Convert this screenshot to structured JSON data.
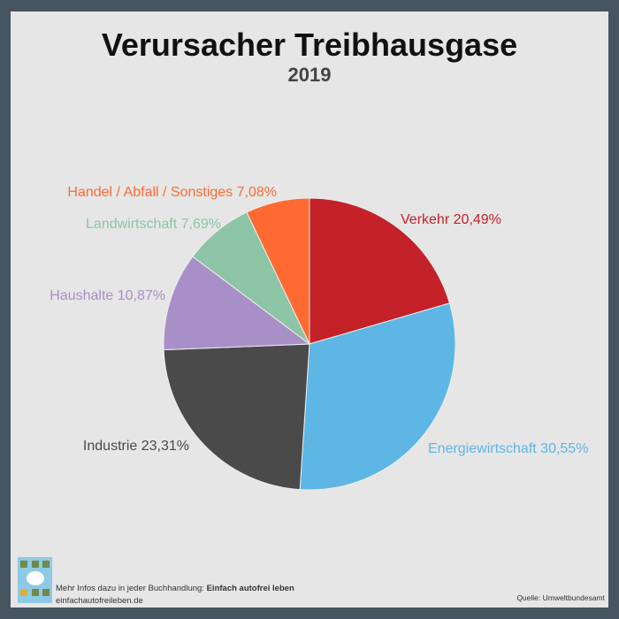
{
  "chart_data": {
    "type": "pie",
    "title": "Verursacher Treibhausgase",
    "subtitle": "2019",
    "slices": [
      {
        "label": "Verkehr 20,49%",
        "value": 20.49,
        "color": "#c42128"
      },
      {
        "label": "Energiewirtschaft 30,55%",
        "value": 30.55,
        "color": "#5db6e4"
      },
      {
        "label": "Industrie 23,31%",
        "value": 23.31,
        "color": "#4a4a4a"
      },
      {
        "label": "Haushalte 10,87%",
        "value": 10.87,
        "color": "#a98fc7"
      },
      {
        "label": "Landwirtschaft 7,69%",
        "value": 7.69,
        "color": "#8dc4a6"
      },
      {
        "label": "Handel / Abfall / Sonstiges 7,08%",
        "value": 7.08,
        "color": "#ff6a33"
      }
    ]
  },
  "footer": {
    "info_prefix": "Mehr Infos dazu in jeder Buchhandlung: ",
    "book_title": "Einfach autofrei leben",
    "website": "einfachautofreileben.de",
    "source": "Quelle: Umweltbundesamt"
  }
}
